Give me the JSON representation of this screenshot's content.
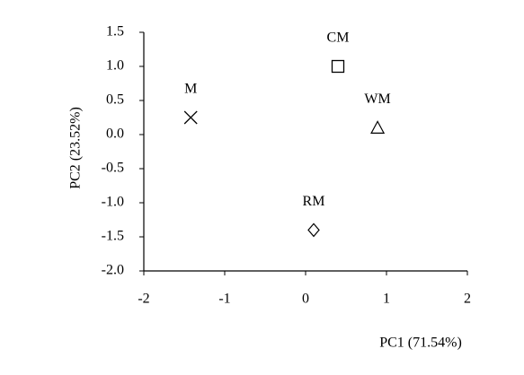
{
  "chart_data": {
    "type": "scatter",
    "x_label": "PC1  (71.54%)",
    "y_label": "PC2  (23.52%)",
    "xlim": [
      -2,
      2
    ],
    "xticks": [
      -2,
      -1,
      0,
      1,
      2
    ],
    "ylim": [
      -2,
      1.5
    ],
    "yticks": [
      {
        "value": -2,
        "label": "-2.0"
      },
      -1.5,
      {
        "value": -1,
        "label": "-1.0"
      },
      -0.5,
      {
        "value": 0,
        "label": "0.0"
      },
      0.5,
      {
        "value": 1,
        "label": "1.0"
      },
      1.5
    ],
    "color": "#000000",
    "series": [
      {
        "name": "M",
        "marker": "x",
        "x": [
          -1.42
        ],
        "values": [
          0.25
        ]
      },
      {
        "name": "CM",
        "marker": "square",
        "x": [
          0.4
        ],
        "values": [
          1.0
        ]
      },
      {
        "name": "WM",
        "marker": "triangle",
        "x": [
          0.89
        ],
        "values": [
          0.1
        ]
      },
      {
        "name": "RM",
        "marker": "diamond",
        "x": [
          0.1
        ],
        "values": [
          -1.4
        ]
      }
    ]
  }
}
